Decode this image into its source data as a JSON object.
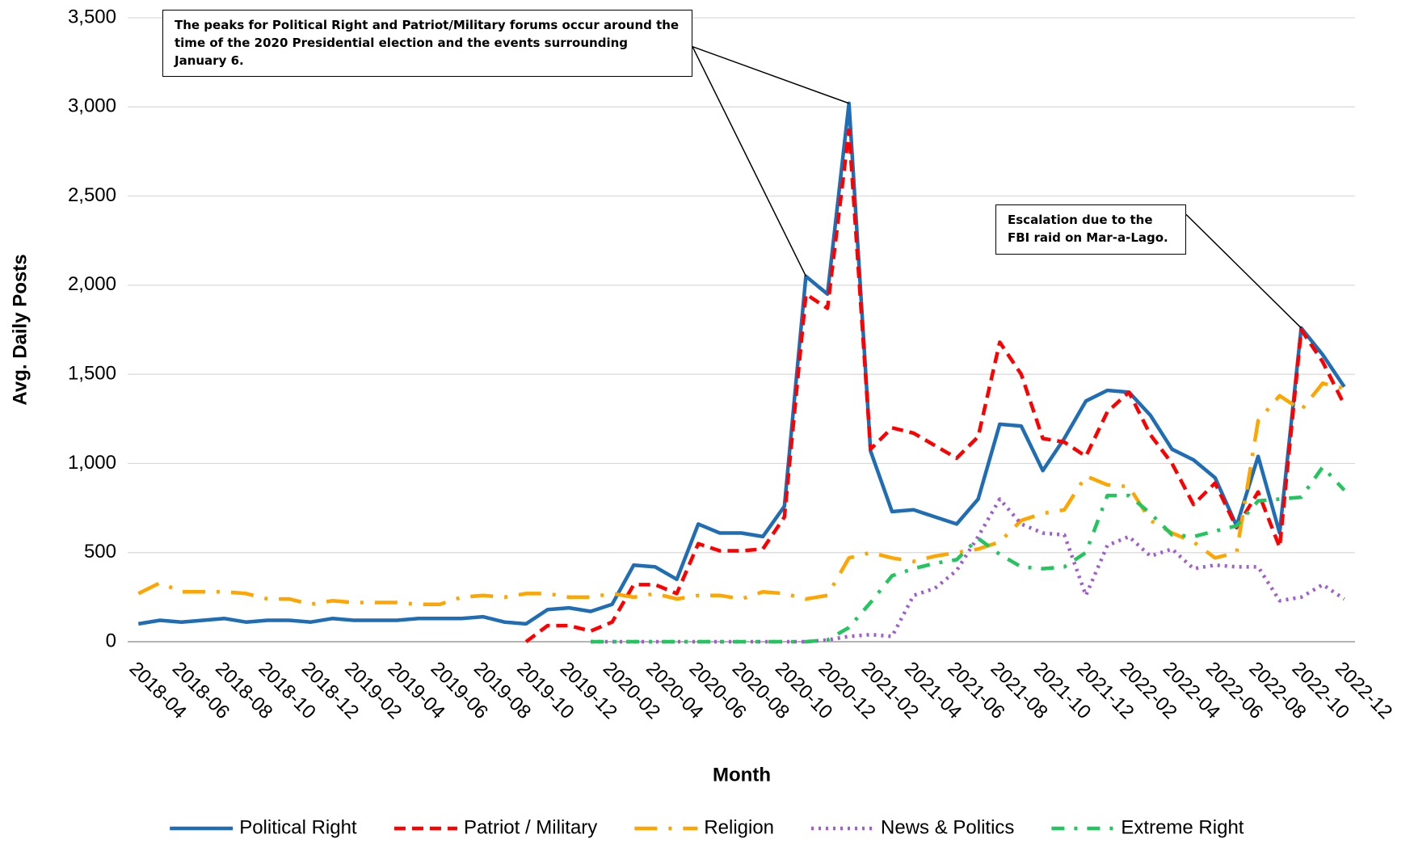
{
  "chart_data": {
    "type": "line",
    "ylabel": "Avg. Daily Posts",
    "xlabel": "Month",
    "categories": [
      "2018-04",
      null,
      "2018-06",
      null,
      "2018-08",
      null,
      "2018-10",
      null,
      "2018-12",
      null,
      "2019-02",
      null,
      "2019-04",
      null,
      "2019-06",
      null,
      "2019-08",
      null,
      "2019-10",
      null,
      "2019-12",
      null,
      "2020-02",
      null,
      "2020-04",
      null,
      "2020-06",
      null,
      "2020-08",
      null,
      "2020-10",
      null,
      "2020-12",
      null,
      "2021-02",
      null,
      "2021-04",
      null,
      "2021-06",
      null,
      "2021-08",
      null,
      "2021-10",
      null,
      "2021-12",
      null,
      "2022-02",
      null,
      "2022-04",
      null,
      "2022-06",
      null,
      "2022-08",
      null,
      "2022-10",
      null,
      "2022-12"
    ],
    "ylim": [
      0,
      3500
    ],
    "yticks": [
      0,
      500,
      {
        "value": 1000,
        "label": "1,000"
      },
      {
        "value": 1500,
        "label": "1,500"
      },
      {
        "value": 2000,
        "label": "2,000"
      },
      {
        "value": 2500,
        "label": "2,500"
      },
      {
        "value": 3000,
        "label": "3,000"
      },
      {
        "value": 3500,
        "label": "3,500"
      }
    ],
    "grid": true,
    "legend": "bottom",
    "series": [
      {
        "name": "Political Right",
        "color": "#1f6db5",
        "dash": "solid",
        "values": [
          100,
          120,
          110,
          120,
          130,
          110,
          120,
          120,
          110,
          130,
          120,
          120,
          120,
          130,
          130,
          130,
          140,
          110,
          100,
          180,
          190,
          170,
          210,
          430,
          420,
          350,
          660,
          610,
          610,
          590,
          760,
          2050,
          1950,
          3020,
          1070,
          730,
          740,
          700,
          660,
          800,
          1220,
          1210,
          960,
          1140,
          1350,
          1410,
          1400,
          1270,
          1080,
          1020,
          920,
          650,
          1040,
          610,
          1760,
          1610,
          1430
        ]
      },
      {
        "name": "Patriot / Military",
        "color": "#ff0000",
        "dash": "dash",
        "values": [
          null,
          null,
          null,
          null,
          null,
          null,
          null,
          null,
          null,
          null,
          null,
          null,
          null,
          null,
          null,
          null,
          null,
          null,
          0,
          90,
          90,
          60,
          110,
          320,
          320,
          270,
          550,
          510,
          510,
          520,
          700,
          1950,
          1870,
          2870,
          1080,
          1200,
          1170,
          1100,
          1030,
          1150,
          1680,
          1500,
          1140,
          1120,
          1040,
          1290,
          1400,
          1160,
          1000,
          770,
          890,
          640,
          840,
          530,
          1750,
          1570,
          1330
        ]
      },
      {
        "name": "Religion",
        "color": "#ffa500",
        "dash": "longdashdot",
        "values": [
          270,
          330,
          280,
          280,
          280,
          270,
          240,
          240,
          210,
          230,
          220,
          220,
          220,
          210,
          210,
          250,
          260,
          250,
          270,
          270,
          250,
          250,
          270,
          250,
          270,
          240,
          260,
          260,
          240,
          280,
          270,
          240,
          260,
          470,
          500,
          470,
          450,
          480,
          500,
          520,
          560,
          680,
          720,
          740,
          930,
          880,
          870,
          680,
          610,
          560,
          470,
          500,
          1240,
          1380,
          1300,
          1450,
          1420
        ]
      },
      {
        "name": "News & Politics",
        "color": "#a05cd0",
        "dash": "dot",
        "values": [
          null,
          null,
          null,
          null,
          null,
          null,
          null,
          null,
          null,
          null,
          null,
          null,
          null,
          null,
          null,
          null,
          null,
          null,
          null,
          null,
          null,
          0,
          0,
          0,
          0,
          0,
          0,
          0,
          0,
          0,
          0,
          0,
          10,
          30,
          40,
          30,
          260,
          300,
          400,
          590,
          800,
          660,
          610,
          600,
          260,
          540,
          590,
          480,
          520,
          410,
          430,
          420,
          420,
          230,
          250,
          320,
          240
        ]
      },
      {
        "name": "Extreme Right",
        "color": "#22c55e",
        "dash": "dashdot",
        "values": [
          null,
          null,
          null,
          null,
          null,
          null,
          null,
          null,
          null,
          null,
          null,
          null,
          null,
          null,
          null,
          null,
          null,
          null,
          null,
          null,
          null,
          0,
          0,
          0,
          0,
          0,
          0,
          0,
          0,
          0,
          0,
          0,
          10,
          80,
          220,
          370,
          410,
          440,
          460,
          580,
          490,
          420,
          410,
          420,
          500,
          820,
          820,
          720,
          600,
          590,
          620,
          650,
          790,
          800,
          810,
          980,
          850
        ]
      }
    ],
    "annotations": [
      "The peaks for Political  Right and Patriot/Military  forums occur around the time of the 2020 Presidential  election and the events surrounding January 6.",
      "Escalation  due to the FBI raid on Mar-a-Lago."
    ]
  }
}
